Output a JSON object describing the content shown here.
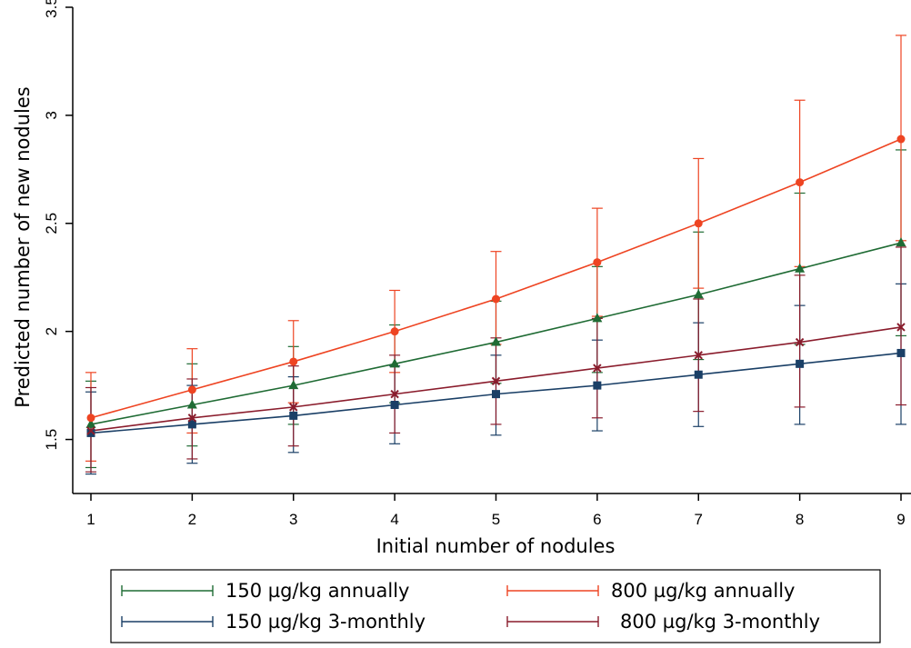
{
  "chart_data": {
    "type": "line",
    "title": "",
    "xlabel": "Initial number of nodules",
    "ylabel": "Predicted number of new nodules",
    "xlim": [
      1,
      9
    ],
    "ylim": [
      1.25,
      3.5
    ],
    "x_ticks": [
      "1",
      "2",
      "3",
      "4",
      "5",
      "6",
      "7",
      "8",
      "9"
    ],
    "y_ticks": [
      "1.5",
      "2",
      "2.5",
      "3",
      "3.5"
    ],
    "x": [
      1,
      2,
      3,
      4,
      5,
      6,
      7,
      8,
      9
    ],
    "grid": false,
    "legend_position": "bottom",
    "series": [
      {
        "name": "150 µg/kg annually",
        "color": "#1f6b34",
        "marker": "triangle",
        "values": [
          1.57,
          1.66,
          1.75,
          1.85,
          1.95,
          2.06,
          2.17,
          2.29,
          2.41
        ],
        "lower": [
          1.37,
          1.47,
          1.57,
          1.67,
          1.76,
          1.81,
          1.87,
          1.94,
          1.98
        ],
        "upper": [
          1.77,
          1.85,
          1.93,
          2.03,
          2.14,
          2.3,
          2.46,
          2.64,
          2.84
        ]
      },
      {
        "name": "800 µg/kg annually",
        "color": "#ee4422",
        "marker": "circle",
        "values": [
          1.6,
          1.73,
          1.86,
          2.0,
          2.15,
          2.32,
          2.5,
          2.69,
          2.89
        ],
        "lower": [
          1.4,
          1.53,
          1.67,
          1.81,
          1.94,
          2.07,
          2.2,
          2.3,
          2.42
        ],
        "upper": [
          1.81,
          1.92,
          2.05,
          2.19,
          2.37,
          2.57,
          2.8,
          3.07,
          3.37
        ]
      },
      {
        "name": "150 µg/kg 3-monthly",
        "color": "#1a3f66",
        "marker": "square",
        "values": [
          1.53,
          1.57,
          1.61,
          1.66,
          1.71,
          1.75,
          1.8,
          1.85,
          1.9
        ],
        "lower": [
          1.34,
          1.39,
          1.44,
          1.48,
          1.52,
          1.54,
          1.56,
          1.57,
          1.57
        ],
        "upper": [
          1.72,
          1.75,
          1.79,
          1.84,
          1.89,
          1.96,
          2.04,
          2.12,
          2.22
        ]
      },
      {
        "name": "800 µg/kg 3-monthly",
        "color": "#8a1c2c",
        "marker": "x",
        "values": [
          1.54,
          1.6,
          1.65,
          1.71,
          1.77,
          1.83,
          1.89,
          1.95,
          2.02
        ],
        "lower": [
          1.35,
          1.41,
          1.47,
          1.53,
          1.57,
          1.6,
          1.63,
          1.65,
          1.66
        ],
        "upper": [
          1.74,
          1.78,
          1.84,
          1.89,
          1.97,
          2.06,
          2.15,
          2.26,
          2.39
        ]
      }
    ],
    "legend_order": [
      0,
      1,
      2,
      3
    ]
  }
}
